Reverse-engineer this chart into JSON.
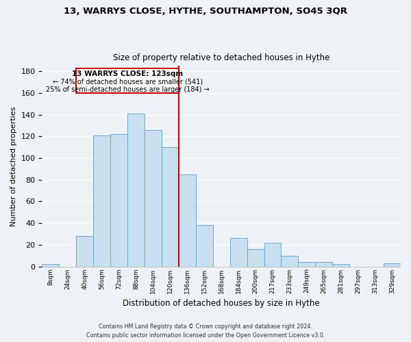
{
  "title": "13, WARRYS CLOSE, HYTHE, SOUTHAMPTON, SO45 3QR",
  "subtitle": "Size of property relative to detached houses in Hythe",
  "xlabel": "Distribution of detached houses by size in Hythe",
  "ylabel": "Number of detached properties",
  "bar_color": "#c8dff0",
  "bar_edge_color": "#6aaad4",
  "bin_labels": [
    "8sqm",
    "24sqm",
    "40sqm",
    "56sqm",
    "72sqm",
    "88sqm",
    "104sqm",
    "120sqm",
    "136sqm",
    "152sqm",
    "168sqm",
    "184sqm",
    "200sqm",
    "217sqm",
    "233sqm",
    "249sqm",
    "265sqm",
    "281sqm",
    "297sqm",
    "313sqm",
    "329sqm"
  ],
  "bar_heights": [
    2,
    0,
    28,
    121,
    122,
    141,
    126,
    110,
    85,
    38,
    0,
    26,
    16,
    22,
    10,
    4,
    4,
    2,
    0,
    0,
    3
  ],
  "vline_color": "#cc0000",
  "ylim": [
    0,
    185
  ],
  "yticks": [
    0,
    20,
    40,
    60,
    80,
    100,
    120,
    140,
    160,
    180
  ],
  "annotation_title": "13 WARRYS CLOSE: 123sqm",
  "annotation_line1": "← 74% of detached houses are smaller (541)",
  "annotation_line2": "25% of semi-detached houses are larger (184) →",
  "annotation_box_color": "#ffffff",
  "annotation_box_edge": "#cc0000",
  "footer_line1": "Contains HM Land Registry data © Crown copyright and database right 2024.",
  "footer_line2": "Contains public sector information licensed under the Open Government Licence v3.0.",
  "background_color": "#eef2f7",
  "grid_color": "#ffffff"
}
